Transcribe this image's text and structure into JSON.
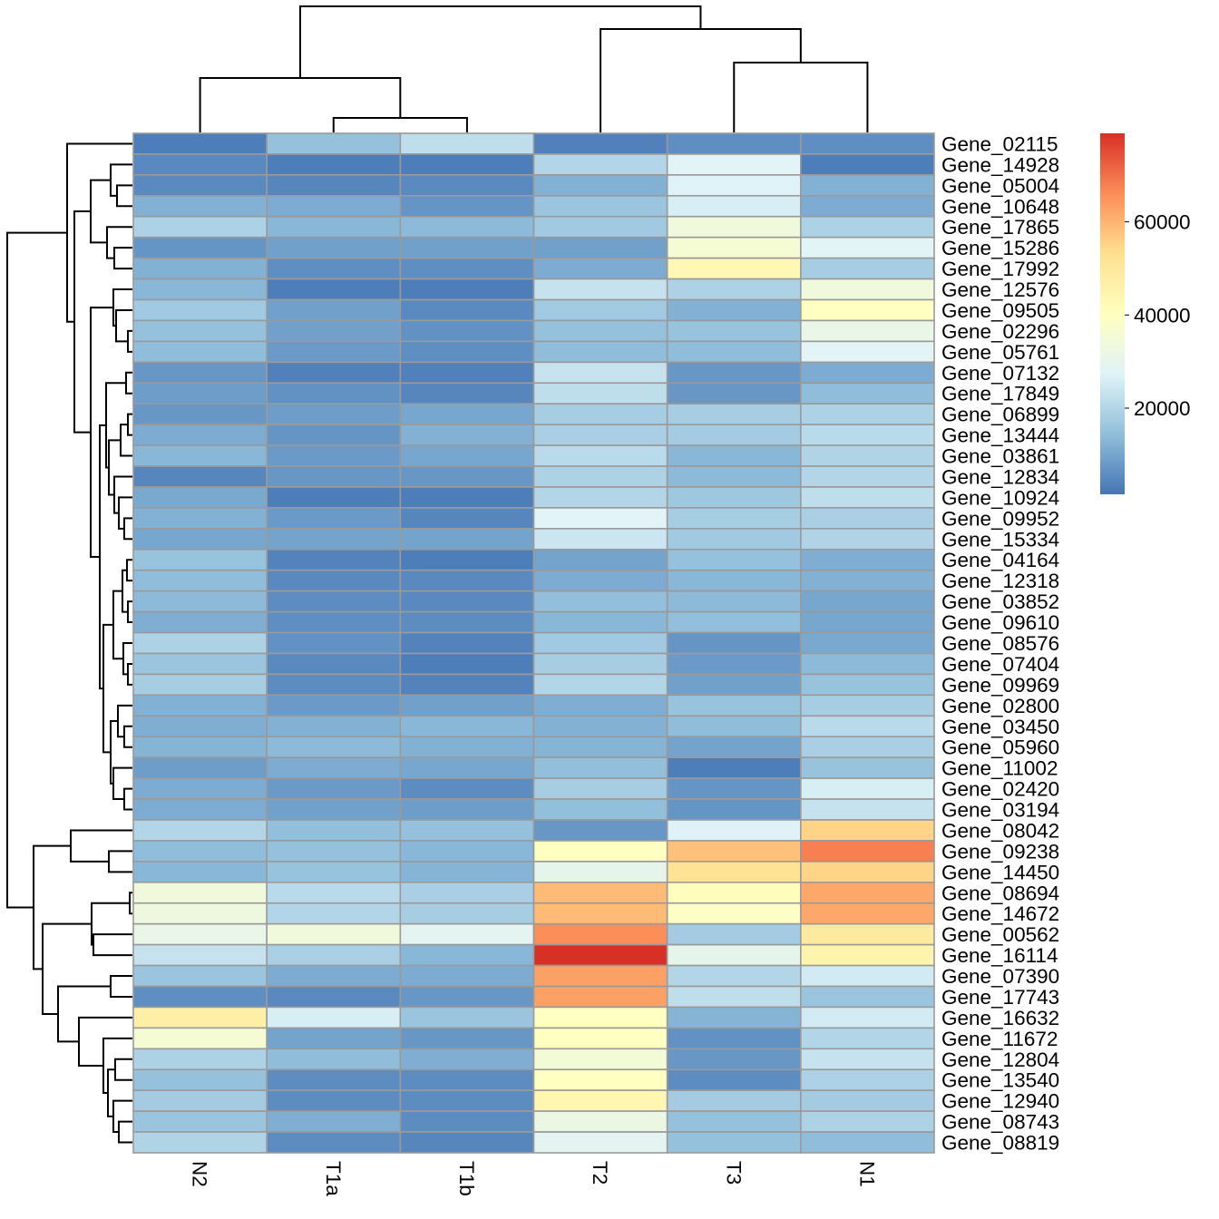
{
  "chart_data": {
    "type": "heatmap",
    "title": "",
    "columns": [
      "N2",
      "T1a",
      "T1b",
      "T2",
      "T3",
      "N1"
    ],
    "rows": [
      "Gene_02115",
      "Gene_14928",
      "Gene_05004",
      "Gene_10648",
      "Gene_17865",
      "Gene_15286",
      "Gene_17992",
      "Gene_12576",
      "Gene_09505",
      "Gene_02296",
      "Gene_05761",
      "Gene_07132",
      "Gene_17849",
      "Gene_06899",
      "Gene_13444",
      "Gene_03861",
      "Gene_12834",
      "Gene_10924",
      "Gene_09952",
      "Gene_15334",
      "Gene_04164",
      "Gene_12318",
      "Gene_03852",
      "Gene_09610",
      "Gene_08576",
      "Gene_07404",
      "Gene_09969",
      "Gene_02800",
      "Gene_03450",
      "Gene_05960",
      "Gene_11002",
      "Gene_02420",
      "Gene_03194",
      "Gene_08042",
      "Gene_09238",
      "Gene_14450",
      "Gene_08694",
      "Gene_14672",
      "Gene_00562",
      "Gene_16114",
      "Gene_07390",
      "Gene_17743",
      "Gene_16632",
      "Gene_11672",
      "Gene_12804",
      "Gene_13540",
      "Gene_12940",
      "Gene_08743",
      "Gene_08819"
    ],
    "values": [
      [
        3000,
        15000,
        22000,
        3500,
        6000,
        6000
      ],
      [
        5000,
        3000,
        3000,
        20000,
        28000,
        3000
      ],
      [
        5000,
        4500,
        5000,
        12000,
        27000,
        12000
      ],
      [
        12000,
        11000,
        7000,
        16000,
        26000,
        11000
      ],
      [
        19000,
        13000,
        13500,
        17000,
        34000,
        19000
      ],
      [
        7000,
        9000,
        9000,
        9000,
        36000,
        28000
      ],
      [
        12000,
        6000,
        6000,
        11000,
        43000,
        18000
      ],
      [
        13000,
        3000,
        3000,
        23000,
        19000,
        34000
      ],
      [
        17000,
        9000,
        5000,
        17000,
        12000,
        40000
      ],
      [
        15000,
        9000,
        6500,
        15000,
        15500,
        31000
      ],
      [
        14000,
        8000,
        6000,
        14000,
        14000,
        28000
      ],
      [
        7500,
        3500,
        3500,
        23000,
        7500,
        11000
      ],
      [
        8500,
        6500,
        4500,
        22000,
        7500,
        14000
      ],
      [
        7500,
        8500,
        10000,
        18000,
        18000,
        19000
      ],
      [
        11000,
        7000,
        12000,
        18500,
        17500,
        21000
      ],
      [
        13000,
        8000,
        10000,
        21000,
        13000,
        19500
      ],
      [
        4500,
        7500,
        7500,
        19000,
        13500,
        20000
      ],
      [
        10500,
        3000,
        3000,
        20000,
        16500,
        22000
      ],
      [
        12000,
        8000,
        4500,
        28000,
        18000,
        18500
      ],
      [
        10000,
        9500,
        9500,
        24000,
        17000,
        19500
      ],
      [
        15500,
        4000,
        3000,
        9500,
        15000,
        11500
      ],
      [
        14000,
        5000,
        5000,
        11000,
        13000,
        12000
      ],
      [
        13500,
        5500,
        5000,
        14500,
        13500,
        10000
      ],
      [
        11500,
        6000,
        5500,
        13000,
        14500,
        10000
      ],
      [
        19000,
        6500,
        4000,
        17000,
        7000,
        10500
      ],
      [
        16000,
        5000,
        3000,
        18000,
        8000,
        13500
      ],
      [
        18000,
        5500,
        4000,
        20000,
        9000,
        15500
      ],
      [
        12000,
        8000,
        9000,
        11500,
        15500,
        18000
      ],
      [
        11500,
        12000,
        13000,
        12000,
        14000,
        21000
      ],
      [
        12500,
        13500,
        12000,
        12500,
        9500,
        18500
      ],
      [
        8500,
        11000,
        10000,
        14500,
        3000,
        15500
      ],
      [
        11000,
        8000,
        5500,
        18000,
        7000,
        26000
      ],
      [
        11000,
        9000,
        8500,
        14500,
        7000,
        23000
      ],
      [
        20000,
        14500,
        15000,
        7500,
        27000,
        55000
      ],
      [
        14000,
        15000,
        13000,
        40000,
        58000,
        68000
      ],
      [
        13000,
        15500,
        12500,
        30000,
        52000,
        55000
      ],
      [
        34000,
        21000,
        18500,
        59000,
        41000,
        62000
      ],
      [
        33000,
        20000,
        18000,
        59000,
        39000,
        62000
      ],
      [
        31000,
        34000,
        29000,
        66000,
        17500,
        49000
      ],
      [
        23000,
        18500,
        13000,
        79000,
        30000,
        45000
      ],
      [
        16000,
        11000,
        11000,
        63000,
        20000,
        25000
      ],
      [
        6000,
        5000,
        7500,
        63000,
        22000,
        16000
      ],
      [
        47000,
        26000,
        16000,
        40000,
        12500,
        25000
      ],
      [
        36000,
        9500,
        7500,
        40000,
        6500,
        20000
      ],
      [
        19000,
        14000,
        11500,
        35000,
        7500,
        23000
      ],
      [
        15000,
        5500,
        5500,
        40000,
        5500,
        19000
      ],
      [
        17500,
        5500,
        5500,
        44000,
        17500,
        17500
      ],
      [
        16000,
        11500,
        5500,
        32000,
        15000,
        19000
      ],
      [
        19500,
        5500,
        4500,
        29000,
        15000,
        14000
      ]
    ],
    "color_range": [
      1500,
      79000
    ],
    "palette": [
      "#4575B4",
      "#91BFDB",
      "#E0F3F8",
      "#FFFFBF",
      "#FEE090",
      "#FC8D59",
      "#D73027"
    ],
    "legend": {
      "ticks": [
        20000,
        40000,
        60000
      ],
      "tick_labels": [
        "20000",
        "40000",
        "60000"
      ],
      "placement": "right"
    },
    "row_dendrogram": true,
    "column_dendrogram": true,
    "grid": true
  }
}
